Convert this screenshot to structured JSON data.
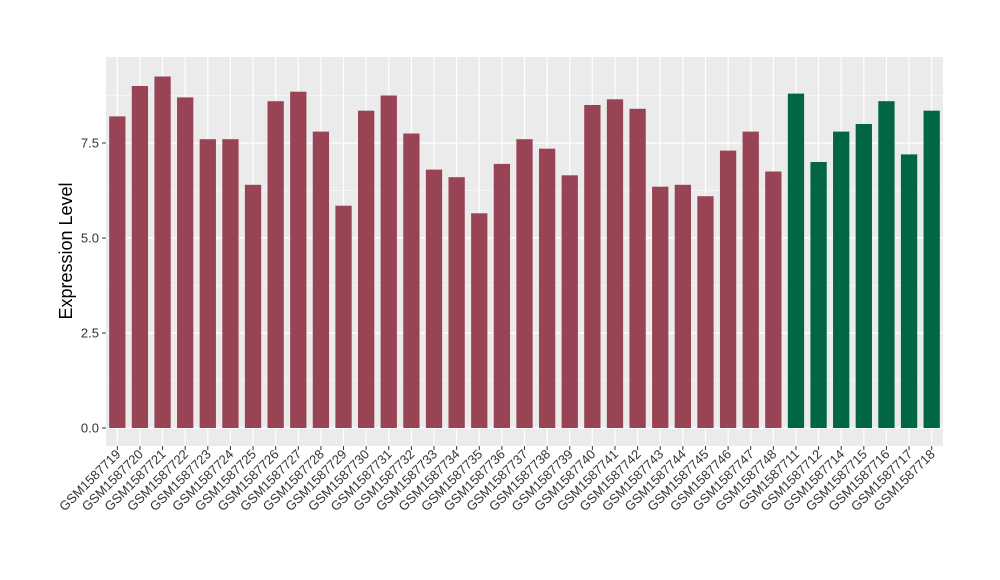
{
  "chart_data": {
    "type": "bar",
    "ylabel": "Expression Level",
    "xlabel": "",
    "ylim": [
      0,
      9.8
    ],
    "yticks": [
      0.0,
      2.5,
      5.0,
      7.5
    ],
    "ytick_labels": [
      "0.0",
      "2.5",
      "5.0",
      "7.5"
    ],
    "grid": true,
    "colors": {
      "group1": "#994455",
      "group2": "#006644",
      "panel": "#ebebeb",
      "gridline": "#ffffff"
    },
    "categories": [
      "GSM1587719",
      "GSM1587720",
      "GSM1587721",
      "GSM1587722",
      "GSM1587723",
      "GSM1587724",
      "GSM1587725",
      "GSM1587726",
      "GSM1587727",
      "GSM1587728",
      "GSM1587729",
      "GSM1587730",
      "GSM1587731",
      "GSM1587732",
      "GSM1587733",
      "GSM1587734",
      "GSM1587735",
      "GSM1587736",
      "GSM1587737",
      "GSM1587738",
      "GSM1587739",
      "GSM1587740",
      "GSM1587741",
      "GSM1587742",
      "GSM1587743",
      "GSM1587744",
      "GSM1587745",
      "GSM1587746",
      "GSM1587747",
      "GSM1587748",
      "GSM1587711",
      "GSM1587712",
      "GSM1587714",
      "GSM1587715",
      "GSM1587716",
      "GSM1587717",
      "GSM1587718"
    ],
    "values": [
      8.2,
      9.0,
      9.25,
      8.7,
      7.6,
      7.6,
      6.4,
      8.6,
      8.85,
      7.8,
      5.85,
      8.35,
      8.75,
      7.75,
      6.8,
      6.6,
      5.65,
      6.95,
      7.6,
      7.35,
      6.65,
      8.5,
      8.65,
      8.4,
      6.35,
      6.4,
      6.1,
      7.3,
      7.8,
      6.75,
      8.8,
      7.0,
      7.8,
      8.0,
      8.6,
      7.2,
      8.35
    ],
    "groups": [
      1,
      1,
      1,
      1,
      1,
      1,
      1,
      1,
      1,
      1,
      1,
      1,
      1,
      1,
      1,
      1,
      1,
      1,
      1,
      1,
      1,
      1,
      1,
      1,
      1,
      1,
      1,
      1,
      1,
      1,
      2,
      2,
      2,
      2,
      2,
      2,
      2
    ]
  }
}
